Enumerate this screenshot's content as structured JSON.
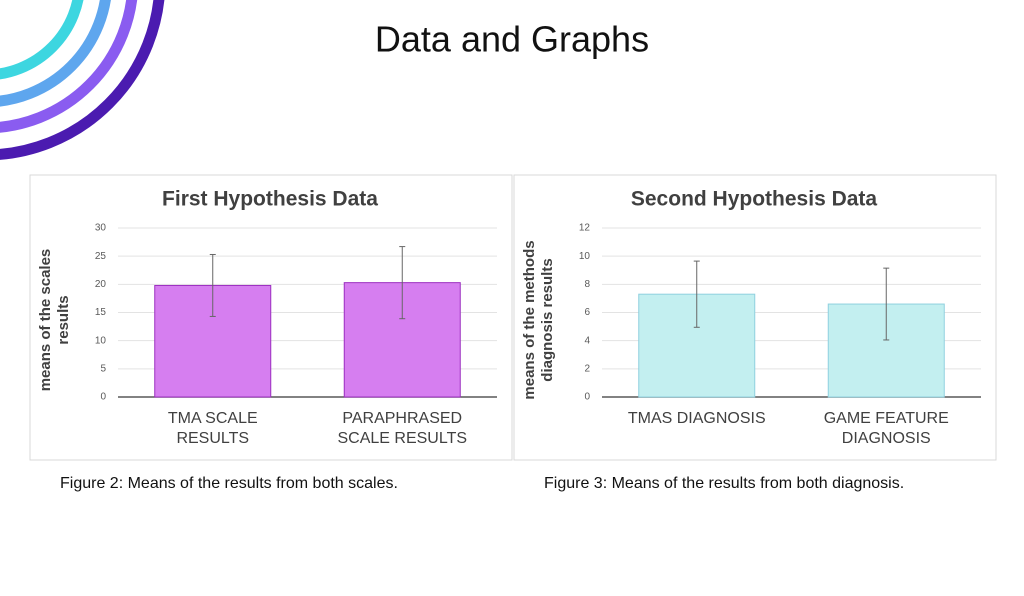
{
  "title": "Data and Graphs",
  "chart_data": [
    {
      "type": "bar",
      "title": "First Hypothesis Data",
      "y_label": "means of the scales results",
      "categories": [
        "TMA SCALE RESULTS",
        "PARAPHRASED SCALE RESULTS"
      ],
      "values": [
        19.8,
        20.3
      ],
      "errors": [
        5.5,
        6.4
      ],
      "color": "#d67ef0",
      "edge_color": "#9c2fc0",
      "ylim": [
        0,
        30
      ],
      "yticks": [
        0,
        5,
        10,
        15,
        20,
        25,
        30
      ],
      "grid": true,
      "caption": "Figure 2: Means of the results from both scales."
    },
    {
      "type": "bar",
      "title": "Second Hypothesis Data",
      "y_label": "means of the methods diagnosis results",
      "categories": [
        "TMAS DIAGNOSIS",
        "GAME FEATURE DIAGNOSIS"
      ],
      "values": [
        7.3,
        6.6
      ],
      "errors": [
        2.35,
        2.55
      ],
      "color": "#c3eff0",
      "edge_color": "#8fd0df",
      "ylim": [
        0,
        12
      ],
      "yticks": [
        0,
        2,
        4,
        6,
        8,
        10,
        12
      ],
      "grid": true,
      "caption": "Figure 3: Means of the results from both diagnosis."
    }
  ]
}
